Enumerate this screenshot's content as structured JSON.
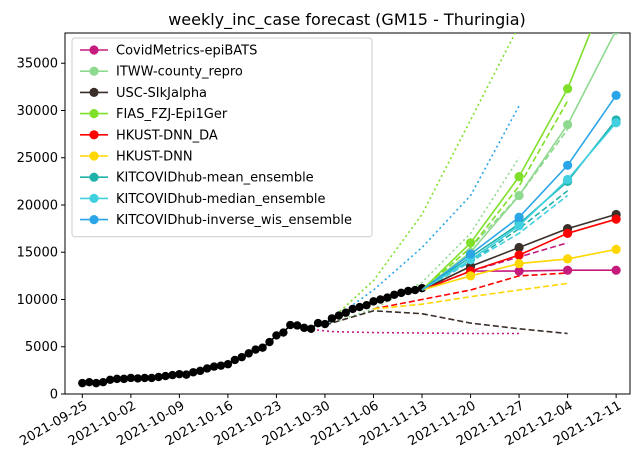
{
  "chart_data": {
    "type": "line",
    "title": "weekly_inc_case forecast (GM15 - Thuringia)",
    "xlabel": "",
    "ylabel": "",
    "ylim": [
      0,
      38200
    ],
    "yticks": [
      0,
      5000,
      10000,
      15000,
      20000,
      25000,
      30000,
      35000
    ],
    "ytick_labels": [
      "0",
      "5000",
      "10000",
      "15000",
      "20000",
      "25000",
      "30000",
      "35000"
    ],
    "xlim_days": [
      -2.5,
      79
    ],
    "xticks": [
      {
        "day": 0,
        "label": "2021-09-25"
      },
      {
        "day": 7,
        "label": "2021-10-02"
      },
      {
        "day": 14,
        "label": "2021-10-09"
      },
      {
        "day": 21,
        "label": "2021-10-16"
      },
      {
        "day": 28,
        "label": "2021-10-23"
      },
      {
        "day": 35,
        "label": "2021-10-30"
      },
      {
        "day": 42,
        "label": "2021-11-06"
      },
      {
        "day": 49,
        "label": "2021-11-13"
      },
      {
        "day": 56,
        "label": "2021-11-20"
      },
      {
        "day": 63,
        "label": "2021-11-27"
      },
      {
        "day": 70,
        "label": "2021-12-04"
      },
      {
        "day": 77,
        "label": "2021-12-11"
      }
    ],
    "legend_position": "top-left",
    "truth": {
      "name": "observed",
      "color": "#000000",
      "days": [
        0,
        1,
        2,
        3,
        4,
        5,
        6,
        7,
        8,
        9,
        10,
        11,
        12,
        13,
        14,
        15,
        16,
        17,
        18,
        19,
        20,
        21,
        22,
        23,
        24,
        25,
        26,
        27,
        28,
        29,
        30,
        31,
        32,
        33,
        34,
        35,
        36,
        37,
        38,
        39,
        40,
        41,
        42,
        43,
        44,
        45,
        46,
        47,
        48,
        49
      ],
      "values": [
        1150,
        1250,
        1150,
        1250,
        1500,
        1600,
        1600,
        1700,
        1650,
        1700,
        1700,
        1800,
        1900,
        2000,
        2100,
        2050,
        2300,
        2450,
        2700,
        2900,
        3000,
        3150,
        3600,
        3900,
        4300,
        4700,
        4900,
        5500,
        6200,
        6500,
        7300,
        7250,
        7000,
        6900,
        7500,
        7400,
        8000,
        8300,
        8600,
        9000,
        9200,
        9400,
        9800,
        10000,
        10200,
        10500,
        10700,
        10900,
        11000,
        11200
      ]
    },
    "series": [
      {
        "name": "CovidMetrics-epiBATS",
        "color": "#c51b7d",
        "days": [
          56,
          63,
          70,
          77
        ],
        "values": [
          13000,
          13000,
          13100,
          13100
        ],
        "dashed": {
          "days": [
            49,
            56,
            63,
            70
          ],
          "values": [
            11000,
            13000,
            14500,
            16000
          ]
        },
        "dotted": {
          "days": [
            31,
            36,
            42,
            49,
            56,
            63
          ],
          "values": [
            7000,
            6600,
            6500,
            6450,
            6400,
            6400
          ]
        }
      },
      {
        "name": "ITWW-county_repro",
        "color": "#8fd98f",
        "days": [
          49,
          56,
          63,
          70,
          77
        ],
        "values": [
          11000,
          15000,
          21000,
          28500,
          38500
        ],
        "dashed": {
          "days": [
            49,
            56,
            63,
            70
          ],
          "values": [
            11000,
            15500,
            21000,
            28000
          ]
        },
        "dotted": {
          "days": [
            35,
            42,
            49,
            56,
            63
          ],
          "values": [
            7300,
            9000,
            11800,
            17000,
            25000
          ]
        }
      },
      {
        "name": "USC-SIkJalpha",
        "color": "#3b2f2a",
        "days": [
          49,
          56,
          63,
          70,
          77
        ],
        "values": [
          11000,
          13500,
          15500,
          17500,
          19000
        ],
        "dashed": {
          "days": [
            35,
            42,
            49,
            56,
            63,
            70
          ],
          "values": [
            7300,
            8800,
            8500,
            7500,
            6900,
            6400
          ]
        },
        "dotted": {
          "days": [],
          "values": []
        }
      },
      {
        "name": "FIAS_FZJ-Epi1Ger",
        "color": "#7fe02a",
        "days": [
          49,
          56,
          63,
          70,
          77
        ],
        "values": [
          11000,
          16000,
          23000,
          32300,
          45000
        ],
        "dashed": {
          "days": [
            49,
            56,
            63,
            70
          ],
          "values": [
            11000,
            15500,
            22000,
            31000
          ]
        },
        "dotted": {
          "days": [
            35,
            42,
            49,
            56,
            63
          ],
          "values": [
            7300,
            12000,
            19000,
            29000,
            39000
          ]
        }
      },
      {
        "name": "HKUST-DNN_DA",
        "color": "#ff0000",
        "days": [
          49,
          56,
          63,
          70,
          77
        ],
        "values": [
          11000,
          13000,
          14700,
          17000,
          18500
        ],
        "dashed": {
          "days": [
            42,
            49,
            56,
            63,
            70
          ],
          "values": [
            9000,
            10000,
            11000,
            12500,
            12800
          ]
        },
        "dotted": {
          "days": [],
          "values": []
        }
      },
      {
        "name": "HKUST-DNN",
        "color": "#ffd700",
        "days": [
          49,
          56,
          63,
          70,
          77
        ],
        "values": [
          11000,
          12500,
          13800,
          14300,
          15300
        ],
        "dashed": {
          "days": [
            42,
            49,
            56,
            63,
            70
          ],
          "values": [
            9000,
            9500,
            10300,
            11000,
            11700
          ]
        },
        "dotted": {
          "days": [],
          "values": []
        }
      },
      {
        "name": "KITCOVIDhub-mean_ensemble",
        "color": "#20b2aa",
        "days": [
          49,
          56,
          63,
          70,
          77
        ],
        "values": [
          11000,
          14500,
          18000,
          22500,
          29000
        ],
        "dashed": {
          "days": [
            49,
            56,
            63,
            70
          ],
          "values": [
            11000,
            14000,
            17500,
            21500
          ]
        },
        "dotted": {
          "days": [],
          "values": []
        }
      },
      {
        "name": "KITCOVIDhub-median_ensemble",
        "color": "#40d0e0",
        "days": [
          49,
          56,
          63,
          70,
          77
        ],
        "values": [
          11000,
          14200,
          17800,
          22700,
          28700
        ],
        "dashed": {
          "days": [
            49,
            56,
            63,
            70
          ],
          "values": [
            11000,
            14000,
            17000,
            21000
          ]
        },
        "dotted": {
          "days": [],
          "values": []
        }
      },
      {
        "name": "KITCOVIDhub-inverse_wis_ensemble",
        "color": "#2aa6e8",
        "days": [
          49,
          56,
          63,
          70,
          77
        ],
        "values": [
          11000,
          14800,
          18700,
          24200,
          31600
        ],
        "dashed": {
          "days": [],
          "values": []
        },
        "dotted": {
          "days": [
            35,
            42,
            49,
            56,
            63
          ],
          "values": [
            7300,
            11000,
            15500,
            21000,
            30500
          ]
        }
      }
    ]
  }
}
